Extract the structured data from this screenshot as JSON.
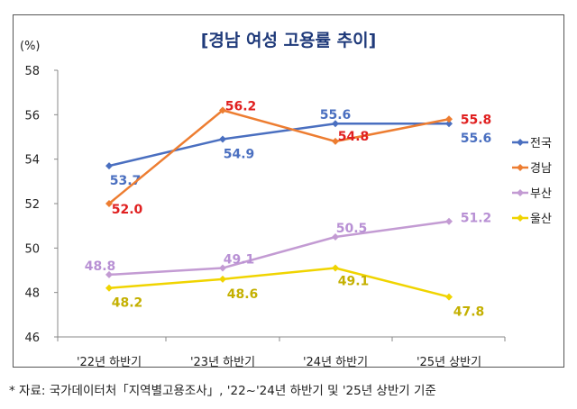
{
  "chart_data": {
    "type": "line",
    "title": "[경남 여성 고용률 추이]",
    "ylabel": "(%)",
    "ylim": [
      46,
      58
    ],
    "yticks": [
      46,
      48,
      50,
      52,
      54,
      56,
      58
    ],
    "categories": [
      "'22년 하반기",
      "'23년 하반기",
      "'24년 하반기",
      "'25년 상반기"
    ],
    "grid": false,
    "legend_placement": "right",
    "series": [
      {
        "name": "전국",
        "values": [
          53.7,
          54.9,
          55.6,
          55.6
        ],
        "color": "#4a6fc0",
        "label_color": "#4a6fc0"
      },
      {
        "name": "경남",
        "values": [
          52.0,
          56.2,
          54.8,
          55.8
        ],
        "color": "#ed7d31",
        "label_color": "#e02020"
      },
      {
        "name": "부산",
        "values": [
          48.8,
          49.1,
          50.5,
          51.2
        ],
        "color": "#c39bd3",
        "label_color": "#b890d4"
      },
      {
        "name": "울산",
        "values": [
          48.2,
          48.6,
          49.1,
          47.8
        ],
        "color": "#f0d400",
        "label_color": "#c4b000"
      }
    ]
  },
  "footnote": "* 자료: 국가데이터처「지역별고용조사」, '22~'24년 하반기 및 '25년 상반기 기준"
}
